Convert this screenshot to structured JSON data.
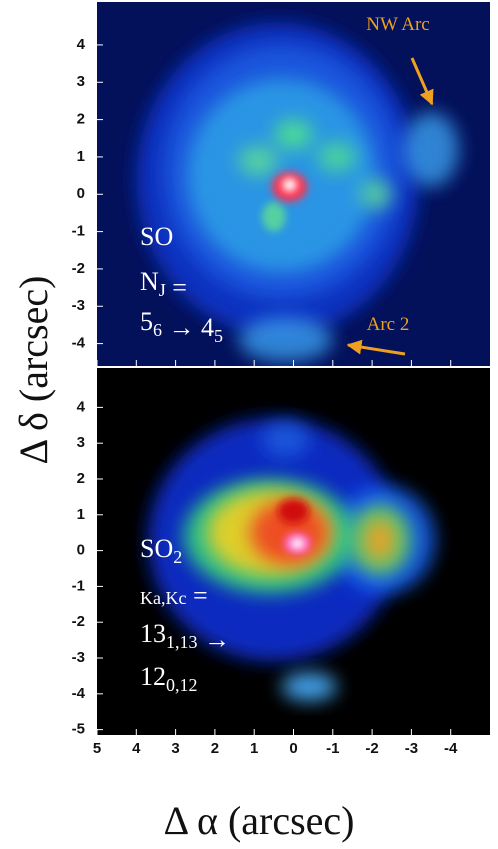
{
  "axis_labels": {
    "x": "Δ α (arcsec)",
    "y": "Δ δ (arcsec)"
  },
  "chart_data": [
    {
      "type": "image",
      "xlim": [
        5,
        -5
      ],
      "ylim": [
        -4.6,
        5.15
      ],
      "xticks": [
        5,
        4,
        3,
        2,
        1,
        0,
        -1,
        -2,
        -3,
        -4
      ],
      "yticks": [
        4,
        3,
        2,
        1,
        0,
        -1,
        -2,
        -3,
        -4
      ],
      "annotations": [
        {
          "text": "NW Arc"
        },
        {
          "text": "Arc 2"
        }
      ],
      "label_lines": [
        [
          {
            "text": "SO"
          }
        ],
        [
          {
            "text": "N",
            "sub": "J"
          },
          {
            "text": " ="
          }
        ],
        [
          {
            "text": "5",
            "sub": "6"
          },
          {
            "text": " → 4",
            "sub": "5"
          }
        ]
      ]
    },
    {
      "type": "image",
      "xlim": [
        5,
        -5
      ],
      "ylim": [
        -5.15,
        5.1
      ],
      "xticks": [
        5,
        4,
        3,
        2,
        1,
        0,
        -1,
        -2,
        -3,
        -4
      ],
      "yticks": [
        4,
        3,
        2,
        1,
        0,
        -1,
        -2,
        -3,
        -4,
        -5
      ],
      "label_lines": [
        [
          {
            "text": "SO",
            "sub": "2"
          }
        ],
        [
          {
            "sub": "Ka,Kc"
          },
          {
            "text": " ="
          }
        ],
        [
          {
            "text": "13",
            "sub": "1,13"
          },
          {
            "text": " →"
          }
        ],
        [
          {
            "text": "12",
            "sub": "0,12"
          }
        ]
      ]
    }
  ]
}
